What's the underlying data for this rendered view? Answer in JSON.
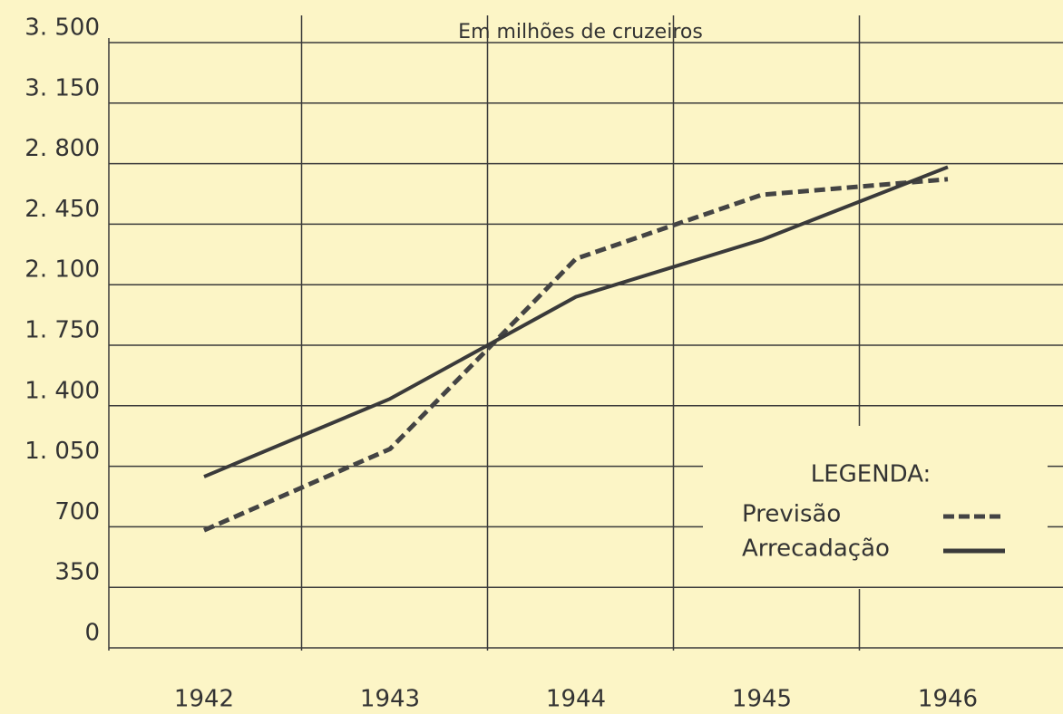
{
  "chart_data": {
    "type": "line",
    "title": "Em milhões de cruzeiros",
    "categories": [
      "1942",
      "1943",
      "1944",
      "1945",
      "1946"
    ],
    "series": [
      {
        "name": "Previsão",
        "color": "#444444",
        "style": "dashed",
        "values": [
          680,
          1150,
          2250,
          2620,
          2710
        ]
      },
      {
        "name": "Arrecadação",
        "color": "#3a3a3a",
        "style": "solid",
        "values": [
          990,
          1440,
          2030,
          2360,
          2780
        ]
      }
    ],
    "ylim": [
      0,
      3500
    ],
    "yticks": [
      0,
      350,
      700,
      {
        "value": 1050,
        "label": "1. 050"
      },
      {
        "value": 1400,
        "label": "1. 400"
      },
      {
        "value": 1750,
        "label": "1. 750"
      },
      {
        "value": 2100,
        "label": "2. 100"
      },
      {
        "value": 2450,
        "label": "2. 450"
      },
      {
        "value": 2800,
        "label": "2. 800"
      },
      {
        "value": 3150,
        "label": "3. 150"
      },
      {
        "value": 3500,
        "label": "3. 500"
      }
    ],
    "grid": true,
    "legend_title": "LEGENDA:",
    "legend_position": "lower right"
  }
}
